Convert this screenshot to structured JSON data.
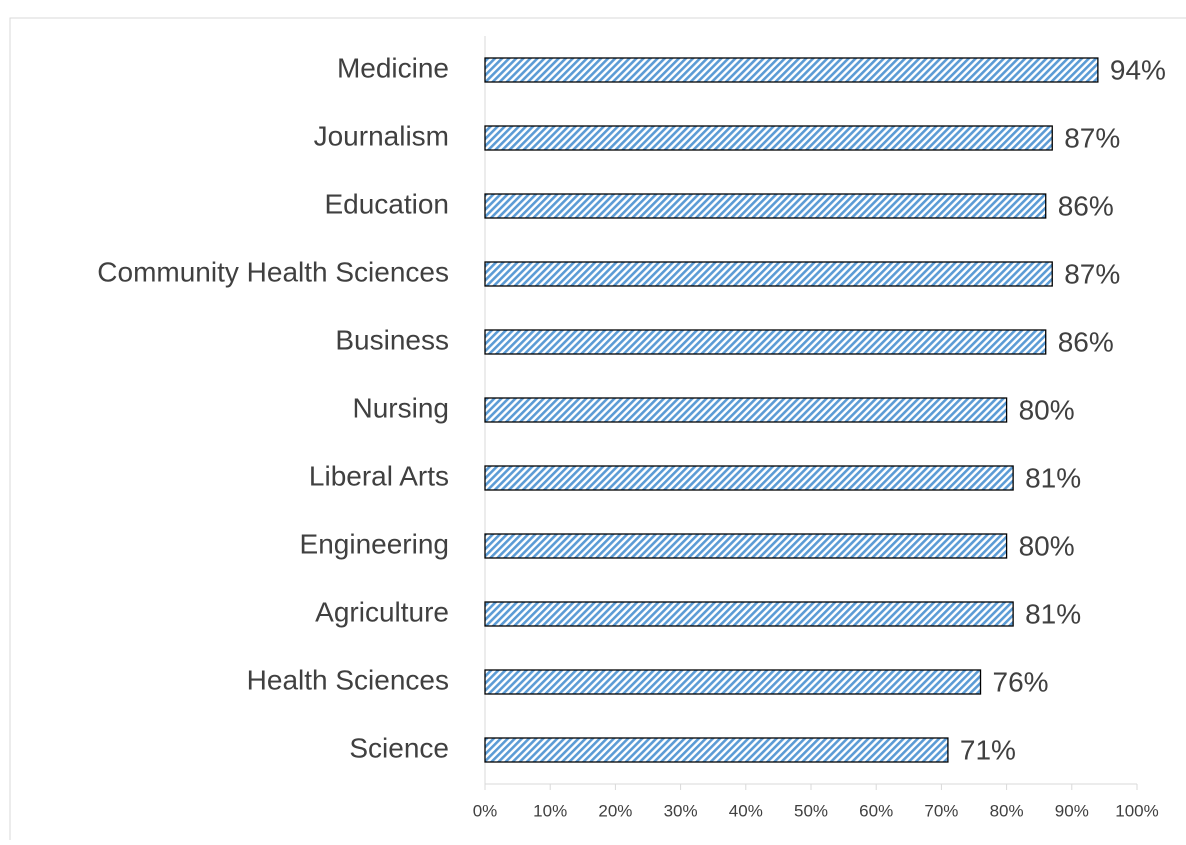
{
  "chart_data": {
    "type": "bar",
    "orientation": "horizontal",
    "categories": [
      "Medicine",
      "Journalism",
      "Education",
      "Community Health Sciences",
      "Business",
      "Nursing",
      "Liberal Arts",
      "Engineering",
      "Agriculture",
      "Health Sciences",
      "Science"
    ],
    "values": [
      94,
      87,
      86,
      87,
      86,
      80,
      81,
      80,
      81,
      76,
      71
    ],
    "value_labels": [
      "94%",
      "87%",
      "86%",
      "87%",
      "86%",
      "80%",
      "81%",
      "80%",
      "81%",
      "76%",
      "71%"
    ],
    "color": "#5b9bd5",
    "xlim": [
      0,
      100
    ],
    "xticks": [
      {
        "value": 0,
        "label": "0%"
      },
      {
        "value": 10,
        "label": "10%"
      },
      {
        "value": 20,
        "label": "20%"
      },
      {
        "value": 30,
        "label": "30%"
      },
      {
        "value": 40,
        "label": "40%"
      },
      {
        "value": 50,
        "label": "50%"
      },
      {
        "value": 60,
        "label": "60%"
      },
      {
        "value": 70,
        "label": "70%"
      },
      {
        "value": 80,
        "label": "80%"
      },
      {
        "value": 90,
        "label": "90%"
      },
      {
        "value": 100,
        "label": "100%"
      }
    ],
    "grid": false
  }
}
